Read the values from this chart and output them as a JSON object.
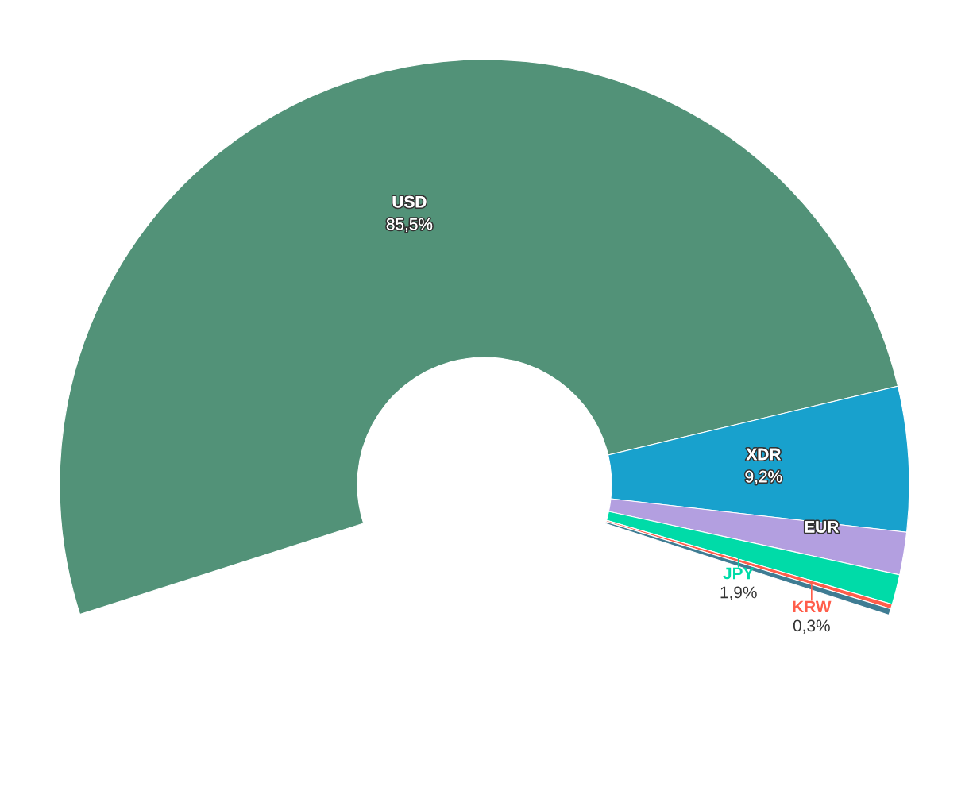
{
  "chart_data": {
    "type": "donut",
    "categories": [
      "USD",
      "XDR",
      "EUR",
      "JPY",
      "KRW",
      null
    ],
    "values": [
      85.5,
      9.2,
      2.7,
      1.9,
      0.3,
      0.4
    ],
    "colors": [
      "#529278",
      "#18a1cd",
      "#b39fe0",
      "#00dba8",
      "#ff5e4b",
      "#3f7c93"
    ],
    "value_labels": [
      "85,5%",
      "9,2%",
      null,
      "1,9%",
      "0,3%",
      null
    ]
  }
}
